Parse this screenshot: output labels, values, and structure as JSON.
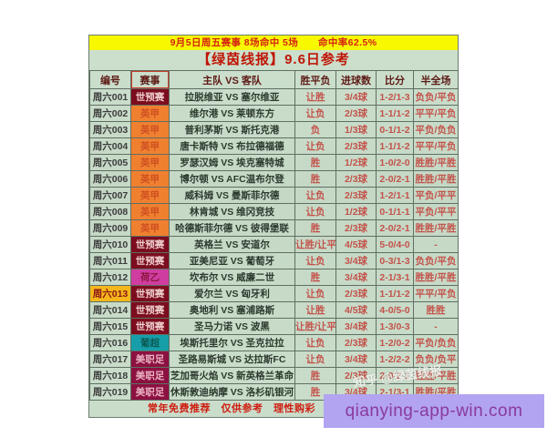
{
  "header": {
    "stats_bar": "9月5日周五赛事 8场命中 5场　　命中率62.5%",
    "title": "【绿茵线报】9.6日参考"
  },
  "table": {
    "columns": [
      "编号",
      "赛事",
      "主队 VS 客队",
      "胜平负",
      "进球数",
      "比分",
      "半全场"
    ],
    "rows": [
      {
        "no": "周六001",
        "league": "世预赛",
        "match": "拉脱维亚 VS 塞尔维亚",
        "result": "让胜",
        "goals": "3/4球",
        "score": "1-2/1-3",
        "half_full": "负负/平负"
      },
      {
        "no": "周六002",
        "league": "英甲",
        "match": "维尔港 VS 莱顿东方",
        "result": "让负",
        "goals": "2/3球",
        "score": "1-1/1-2",
        "half_full": "平平/平负"
      },
      {
        "no": "周六003",
        "league": "英甲",
        "match": "普利茅斯 VS 斯托克港",
        "result": "负",
        "goals": "1/3球",
        "score": "0-1/1-2",
        "half_full": "平负/负负"
      },
      {
        "no": "周六004",
        "league": "英甲",
        "match": "唐卡斯特 VS 布拉德福德",
        "result": "让负",
        "goals": "2/3球",
        "score": "1-1/1-2",
        "half_full": "平平/平负"
      },
      {
        "no": "周六005",
        "league": "英甲",
        "match": "罗瑟汉姆 VS 埃克塞特城",
        "result": "胜",
        "goals": "1/2球",
        "score": "1-0/2-0",
        "half_full": "胜胜/平胜"
      },
      {
        "no": "周六006",
        "league": "英甲",
        "match": "博尔顿 VS AFC温布尔登",
        "result": "胜",
        "goals": "2/3球",
        "score": "2-0/2-1",
        "half_full": "胜胜/平胜"
      },
      {
        "no": "周六007",
        "league": "英甲",
        "match": "威科姆 VS 曼斯菲尔德",
        "result": "让负",
        "goals": "2/3球",
        "score": "1-2/1-1",
        "half_full": "平负/平平"
      },
      {
        "no": "周六008",
        "league": "英甲",
        "match": "林肯城 VS 维冈竞技",
        "result": "让负",
        "goals": "1/2球",
        "score": "0-1/1-1",
        "half_full": "平负/平平"
      },
      {
        "no": "周六009",
        "league": "英甲",
        "match": "哈德斯菲尔德 VS 彼得堡联",
        "result": "胜",
        "goals": "2/3球",
        "score": "2-0/2-1",
        "half_full": "胜胜/平胜"
      },
      {
        "no": "周六010",
        "league": "世预赛",
        "match": "英格兰 VS 安道尔",
        "result": "让胜/让平",
        "goals": "4/5球",
        "score": "5-0/4-0",
        "half_full": "-"
      },
      {
        "no": "周六011",
        "league": "世预赛",
        "match": "亚美尼亚 VS 葡萄牙",
        "result": "让负",
        "goals": "3/4球",
        "score": "0-3/1-3",
        "half_full": "负负/平负"
      },
      {
        "no": "周六012",
        "league": "荷乙",
        "match": "坎布尔 VS 威廉二世",
        "result": "胜",
        "goals": "3/4球",
        "score": "2-1/3-1",
        "half_full": "胜胜/平胜"
      },
      {
        "no": "周六013",
        "league": "世预赛",
        "match": "爱尔兰 VS 匈牙利",
        "result": "让负",
        "goals": "2/3球",
        "score": "1-1/1-2",
        "half_full": "平平/平负",
        "no_highlight": true
      },
      {
        "no": "周六014",
        "league": "世预赛",
        "match": "奥地利 VS 塞浦路斯",
        "result": "让胜",
        "goals": "4/5球",
        "score": "4-0/5-0",
        "half_full": "胜胜"
      },
      {
        "no": "周六015",
        "league": "世预赛",
        "match": "圣马力诺 VS 波黑",
        "result": "让胜/让平",
        "goals": "3/4球",
        "score": "1-3/0-3",
        "half_full": "-"
      },
      {
        "no": "周六016",
        "league": "葡超",
        "match": "埃斯托里尔 VS 圣克拉拉",
        "result": "让负",
        "goals": "2/3球",
        "score": "1-2/0-2",
        "half_full": "平负/负负"
      },
      {
        "no": "周六017",
        "league": "美职足",
        "match": "圣路易斯城 VS 达拉斯FC",
        "result": "让负",
        "goals": "3/4球",
        "score": "1-2/2-2",
        "half_full": "负负/负平"
      },
      {
        "no": "周六018",
        "league": "美职足",
        "match": "芝加哥火焰 VS 新英格兰革命",
        "result": "胜",
        "goals": "2/3球",
        "score": "2-0/2-1",
        "half_full": "胜胜/平胜"
      },
      {
        "no": "周六019",
        "league": "美职足",
        "match": "休斯敦迪纳摩 VS 洛杉矶银河",
        "result": "胜",
        "goals": "3/4球",
        "score": "2-1/3-1",
        "half_full": "胜胜/平胜"
      }
    ]
  },
  "league_colors": {
    "世预赛": {
      "bg": "#7c0d1f",
      "fg": "#eecfce"
    },
    "英甲": {
      "bg": "#ef8030",
      "fg": "#cf4f22"
    },
    "荷乙": {
      "bg": "#cf3da0",
      "fg": "#8e1640"
    },
    "葡超": {
      "bg": "#179ea8",
      "fg": "#0b5c55"
    },
    "美职足": {
      "bg": "#8c1141",
      "fg": "#eab3c3"
    }
  },
  "highlight_colors": {
    "bg": "#f3b71c",
    "fg": "#8c1515"
  },
  "footer": {
    "text": "常年免费推荐　仅供参考　理性购彩　祝大家好运连连"
  },
  "watermark": {
    "text": "知乎 @绿茵线报"
  },
  "overlay": {
    "text": "qianying-app-win.com"
  }
}
